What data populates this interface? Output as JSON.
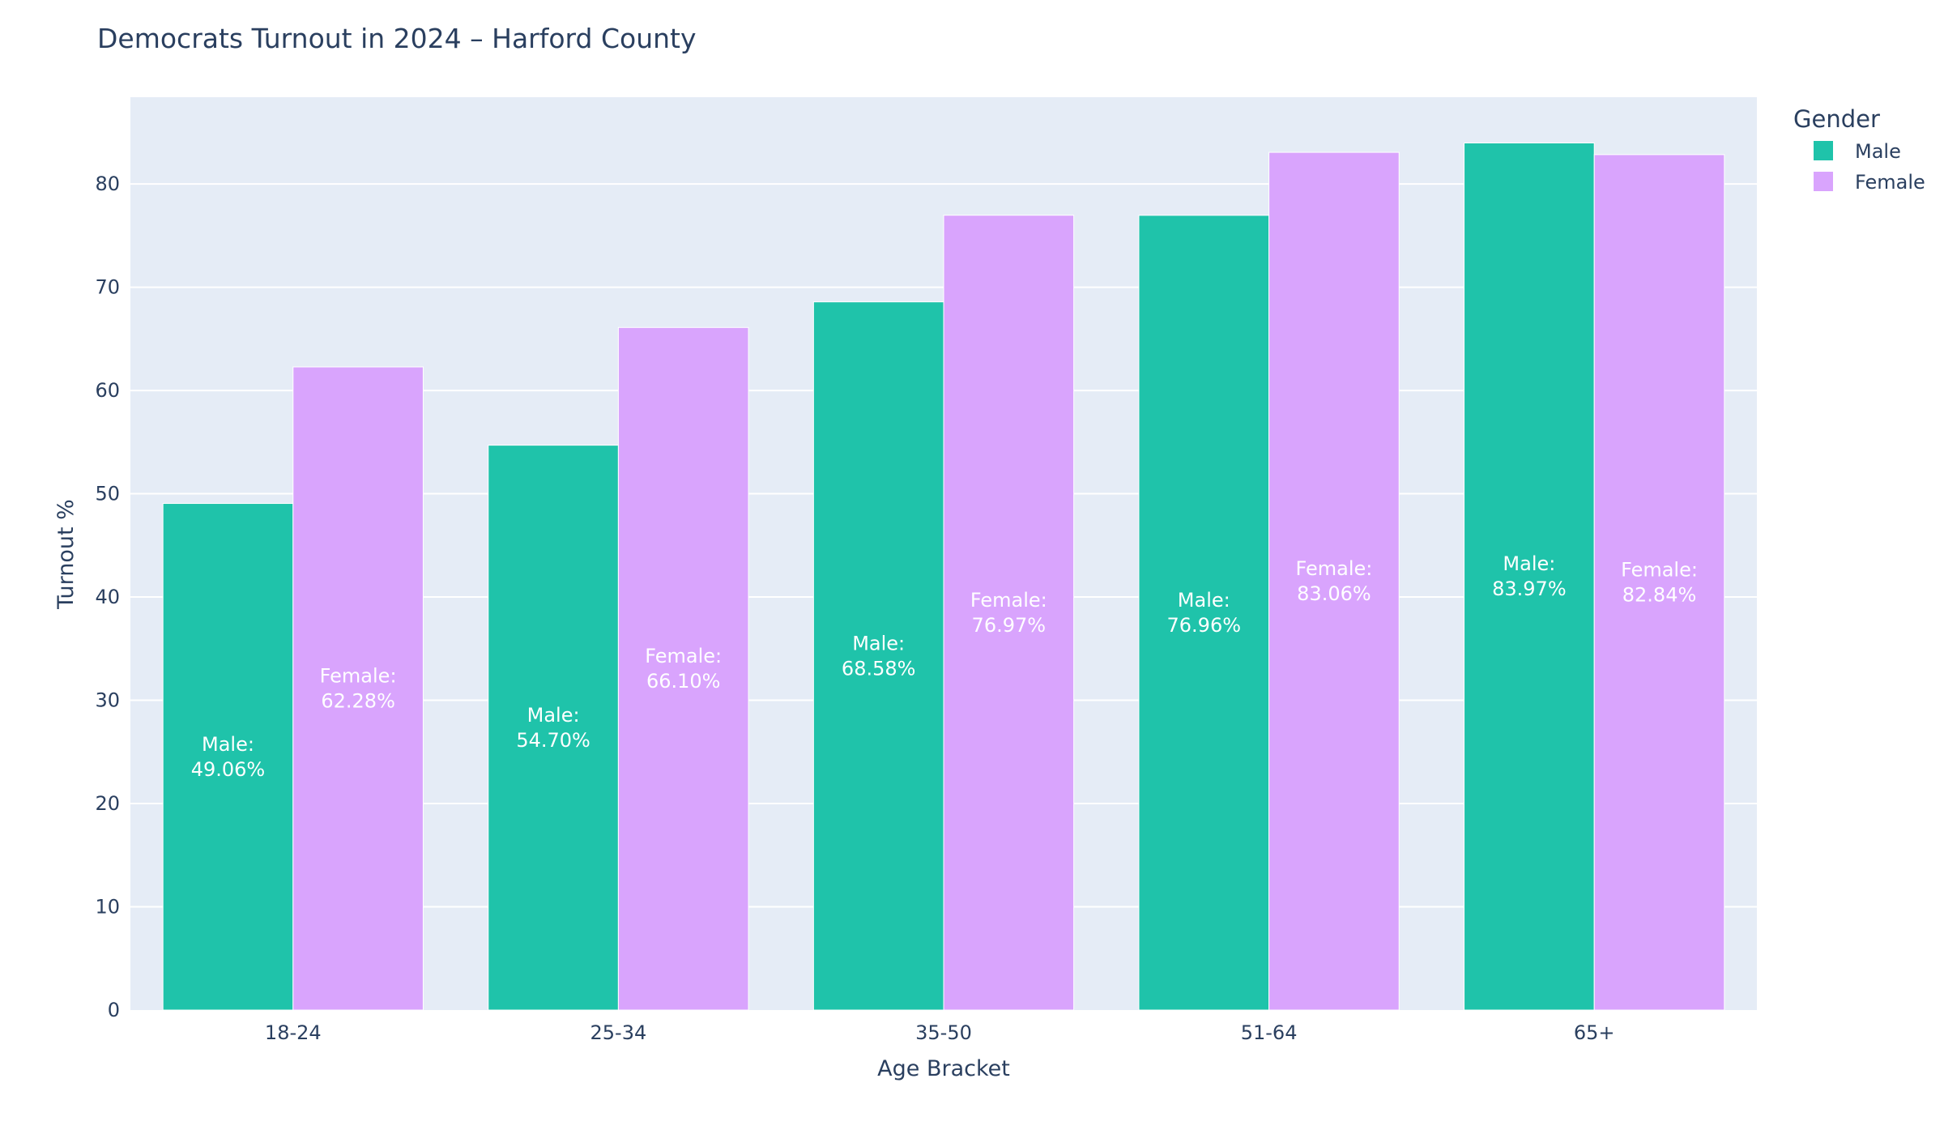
{
  "chart_data": {
    "type": "bar",
    "title": "Democrats Turnout in 2024 – Harford County",
    "xlabel": "Age Bracket",
    "ylabel": "Turnout %",
    "categories": [
      "18-24",
      "25-34",
      "35-50",
      "51-64",
      "65+"
    ],
    "series": [
      {
        "name": "Male",
        "color": "#1fc3aa",
        "values": [
          49.06,
          54.7,
          68.58,
          76.96,
          83.97
        ],
        "labels": [
          "Male:\n49.06%",
          "Male:\n54.70%",
          "Male:\n68.58%",
          "Male:\n76.96%",
          "Male:\n83.97%"
        ]
      },
      {
        "name": "Female",
        "color": "#d9a4fd",
        "values": [
          62.28,
          66.1,
          76.97,
          83.06,
          82.84
        ],
        "labels": [
          "Female:\n62.28%",
          "Female:\n66.10%",
          "Female:\n76.97%",
          "Female:\n83.06%",
          "Female:\n82.84%"
        ]
      }
    ],
    "ylim": [
      0,
      88.4
    ],
    "yticks": [
      0,
      10,
      20,
      30,
      40,
      50,
      60,
      70,
      80
    ],
    "legend": {
      "title": "Gender",
      "placement": "top-right"
    },
    "grid": true,
    "plot_background": "#e5ecf6"
  }
}
